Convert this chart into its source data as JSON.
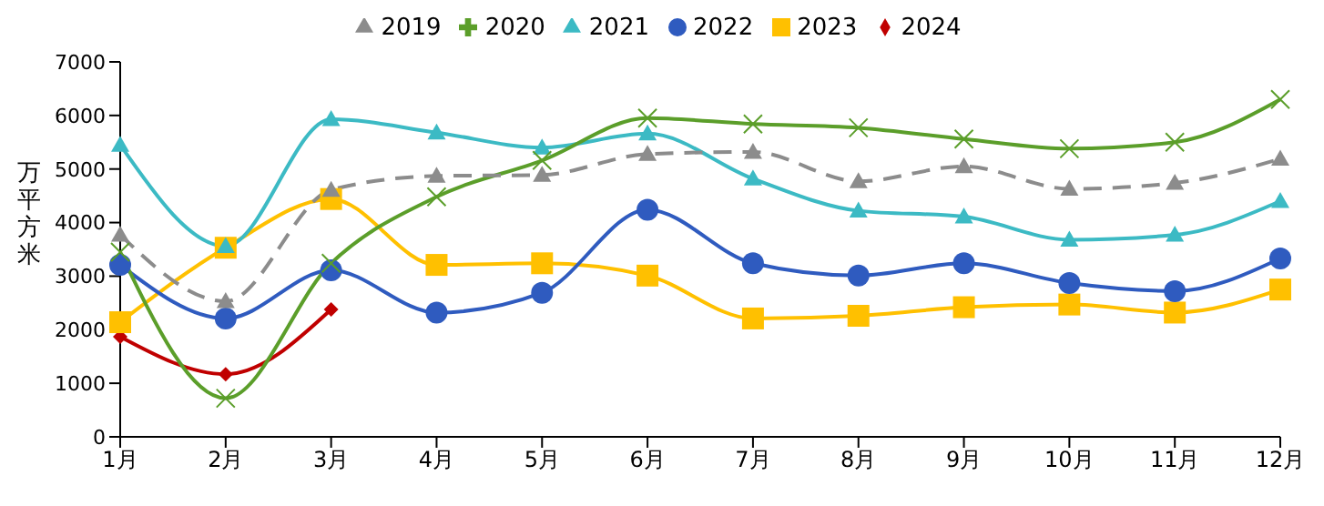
{
  "chart_data": {
    "type": "line",
    "ylabel": "万平方米",
    "categories": [
      "1月",
      "2月",
      "3月",
      "4月",
      "5月",
      "6月",
      "7月",
      "8月",
      "9月",
      "10月",
      "11月",
      "12月"
    ],
    "series": [
      {
        "name": "2019",
        "color": "#8c8c8c",
        "marker": "triangle",
        "line_style": "dashed",
        "values": [
          3770,
          2530,
          4610,
          4870,
          4890,
          5280,
          5320,
          4770,
          5050,
          4630,
          4740,
          5190
        ]
      },
      {
        "name": "2020",
        "color": "#5b9e2a",
        "marker": "cross",
        "values": [
          3450,
          720,
          3240,
          4480,
          5160,
          5950,
          5840,
          5770,
          5560,
          5380,
          5500,
          6300
        ]
      },
      {
        "name": "2021",
        "color": "#3cbac4",
        "marker": "triangle",
        "values": [
          5450,
          3560,
          5930,
          5680,
          5400,
          5660,
          4820,
          4220,
          4110,
          3680,
          3770,
          4400
        ]
      },
      {
        "name": "2022",
        "color": "#2f5bbf",
        "marker": "circle",
        "values": [
          3210,
          2210,
          3110,
          2320,
          2690,
          4240,
          3240,
          3010,
          3240,
          2870,
          2720,
          3330
        ]
      },
      {
        "name": "2023",
        "color": "#ffc000",
        "marker": "square",
        "values": [
          2140,
          3530,
          4440,
          3210,
          3240,
          3010,
          2210,
          2260,
          2420,
          2470,
          2320,
          2750
        ]
      },
      {
        "name": "2024",
        "color": "#c00000",
        "marker": "diamond",
        "values": [
          1870,
          1170,
          2380,
          null,
          null,
          null,
          null,
          null,
          null,
          null,
          null,
          null
        ]
      }
    ],
    "ylim": [
      0,
      7000
    ],
    "yticks": [
      0,
      1000,
      2000,
      3000,
      4000,
      5000,
      6000,
      7000
    ],
    "grid": false,
    "legend": "top"
  }
}
